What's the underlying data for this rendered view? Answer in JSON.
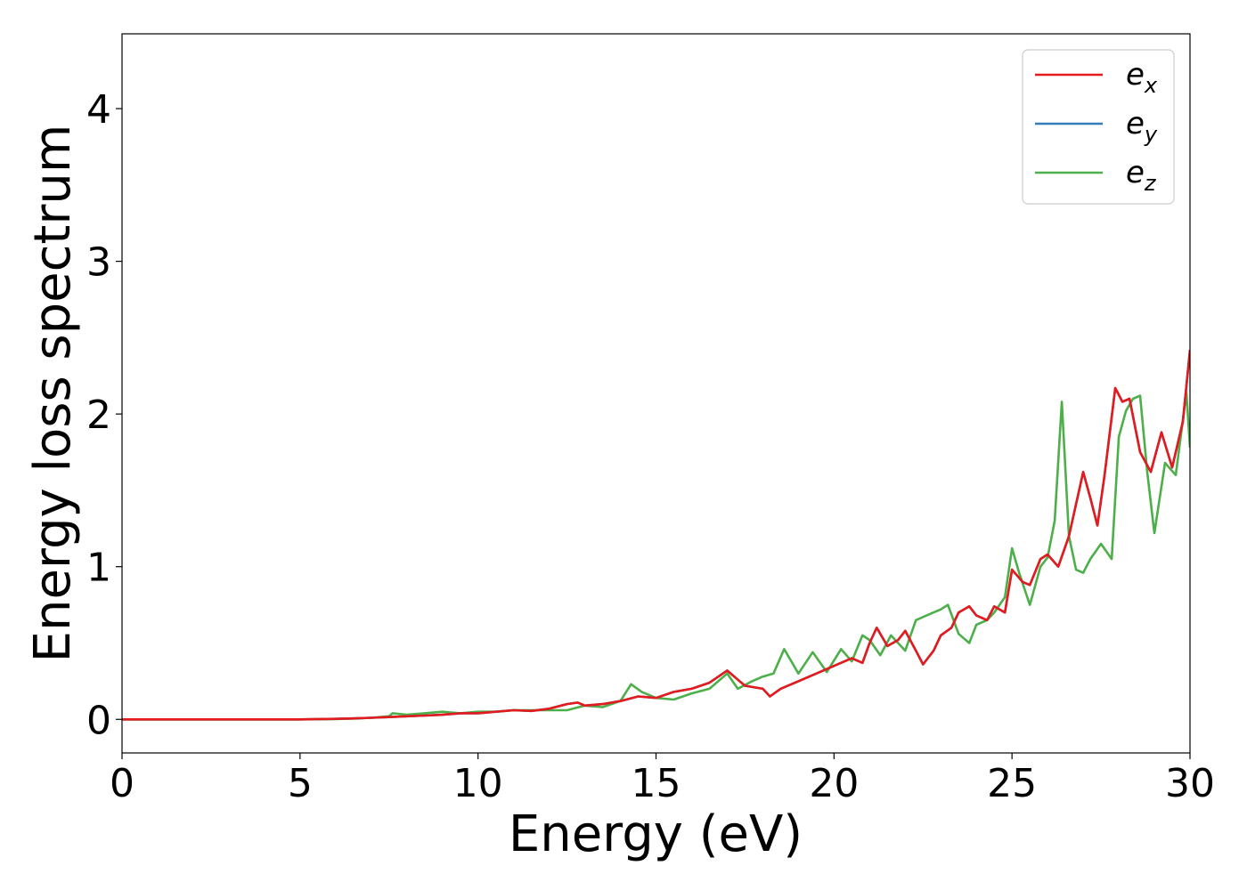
{
  "chart_data": {
    "type": "line",
    "title": "",
    "xlabel": "Energy (eV)",
    "ylabel": "Energy loss spectrum",
    "xlim": [
      0,
      30
    ],
    "ylim": [
      -0.22,
      4.49
    ],
    "xticks": [
      0,
      5,
      10,
      15,
      20,
      25,
      30
    ],
    "xtick_labels": [
      "0",
      "5",
      "10",
      "15",
      "20",
      "25",
      "30"
    ],
    "yticks": [
      0,
      1,
      2,
      3,
      4
    ],
    "ytick_labels": [
      "0",
      "1",
      "2",
      "3",
      "4"
    ],
    "grid": false,
    "legend_position": "top-right",
    "series": [
      {
        "name": "e_x",
        "label_base": "e",
        "label_sub": "x",
        "color": "#e41a1c",
        "x": [
          0,
          5,
          6,
          6.5,
          7,
          7.5,
          8,
          8.5,
          9,
          9.5,
          10,
          10.5,
          11,
          11.5,
          12,
          12.5,
          12.8,
          13,
          13.5,
          14,
          14.5,
          15,
          15.5,
          16,
          16.5,
          17,
          17.3,
          17.5,
          18,
          18.2,
          18.5,
          19,
          19.5,
          20,
          20.5,
          20.8,
          21,
          21.2,
          21.5,
          21.8,
          22,
          22.3,
          22.5,
          22.8,
          23,
          23.3,
          23.5,
          23.8,
          24,
          24.3,
          24.5,
          24.8,
          25,
          25.3,
          25.5,
          25.8,
          26,
          26.3,
          26.6,
          27,
          27.2,
          27.4,
          27.6,
          27.9,
          28.1,
          28.3,
          28.6,
          28.9,
          29.2,
          29.5,
          29.8,
          30
        ],
        "y": [
          0,
          0,
          0.003,
          0.006,
          0.01,
          0.015,
          0.02,
          0.025,
          0.03,
          0.04,
          0.04,
          0.05,
          0.06,
          0.055,
          0.07,
          0.1,
          0.11,
          0.09,
          0.1,
          0.12,
          0.15,
          0.14,
          0.18,
          0.2,
          0.24,
          0.32,
          0.26,
          0.22,
          0.2,
          0.15,
          0.2,
          0.25,
          0.3,
          0.35,
          0.4,
          0.37,
          0.5,
          0.6,
          0.48,
          0.52,
          0.58,
          0.45,
          0.36,
          0.45,
          0.55,
          0.6,
          0.7,
          0.74,
          0.68,
          0.65,
          0.74,
          0.7,
          0.98,
          0.9,
          0.88,
          1.05,
          1.08,
          1.0,
          1.2,
          1.62,
          1.45,
          1.27,
          1.6,
          2.17,
          2.08,
          2.1,
          1.75,
          1.62,
          1.88,
          1.65,
          1.95,
          2.42
        ]
      },
      {
        "name": "e_y",
        "label_base": "e",
        "label_sub": "y",
        "color": "#377eb8",
        "x": [
          0,
          5,
          6,
          6.5,
          7,
          7.5,
          8,
          8.5,
          9,
          9.5,
          10,
          10.5,
          11,
          11.5,
          12,
          12.5,
          12.8,
          13,
          13.5,
          14,
          14.5,
          15,
          15.5,
          16,
          16.5,
          17,
          17.3,
          17.5,
          18,
          18.2,
          18.5,
          19,
          19.5,
          20,
          20.5,
          20.8,
          21,
          21.2,
          21.5,
          21.8,
          22,
          22.3,
          22.5,
          22.8,
          23,
          23.3,
          23.5,
          23.8,
          24,
          24.3,
          24.5,
          24.8,
          25,
          25.3,
          25.5,
          25.8,
          26,
          26.3,
          26.6,
          27,
          27.2,
          27.4,
          27.6,
          27.9,
          28.1,
          28.3,
          28.6,
          28.9,
          29.2,
          29.5,
          29.8,
          30
        ],
        "y": [
          0,
          0,
          0.003,
          0.006,
          0.01,
          0.015,
          0.02,
          0.025,
          0.03,
          0.04,
          0.04,
          0.05,
          0.06,
          0.055,
          0.07,
          0.1,
          0.11,
          0.09,
          0.1,
          0.12,
          0.15,
          0.14,
          0.18,
          0.2,
          0.24,
          0.32,
          0.26,
          0.22,
          0.2,
          0.15,
          0.2,
          0.25,
          0.3,
          0.35,
          0.4,
          0.37,
          0.5,
          0.6,
          0.48,
          0.52,
          0.58,
          0.45,
          0.36,
          0.45,
          0.55,
          0.6,
          0.7,
          0.74,
          0.68,
          0.65,
          0.74,
          0.7,
          0.98,
          0.9,
          0.88,
          1.05,
          1.08,
          1.0,
          1.2,
          1.62,
          1.45,
          1.27,
          1.6,
          2.17,
          2.08,
          2.1,
          1.75,
          1.62,
          1.88,
          1.65,
          1.95,
          2.42
        ]
      },
      {
        "name": "e_z",
        "label_base": "e",
        "label_sub": "z",
        "color": "#4daf4a",
        "x": [
          0,
          5,
          6,
          6.5,
          7,
          7.5,
          7.6,
          8,
          8.5,
          9,
          9.5,
          10,
          10.5,
          11,
          11.5,
          12,
          12.5,
          13,
          13.5,
          14,
          14.3,
          14.6,
          15,
          15.5,
          16,
          16.5,
          17,
          17.3,
          17.7,
          18,
          18.3,
          18.6,
          19,
          19.4,
          19.8,
          20.2,
          20.5,
          20.8,
          21,
          21.3,
          21.6,
          22,
          22.3,
          22.6,
          23,
          23.2,
          23.5,
          23.8,
          24,
          24.3,
          24.5,
          24.8,
          25,
          25.2,
          25.5,
          25.8,
          26,
          26.2,
          26.4,
          26.6,
          26.8,
          27,
          27.2,
          27.5,
          27.8,
          28,
          28.2,
          28.4,
          28.6,
          28.8,
          29,
          29.3,
          29.6,
          29.9,
          30
        ],
        "y": [
          0,
          0,
          0.002,
          0.005,
          0.01,
          0.02,
          0.04,
          0.03,
          0.04,
          0.05,
          0.04,
          0.05,
          0.05,
          0.06,
          0.06,
          0.06,
          0.06,
          0.09,
          0.08,
          0.12,
          0.23,
          0.18,
          0.14,
          0.13,
          0.17,
          0.2,
          0.3,
          0.2,
          0.25,
          0.28,
          0.3,
          0.46,
          0.3,
          0.44,
          0.31,
          0.46,
          0.38,
          0.55,
          0.52,
          0.42,
          0.55,
          0.45,
          0.65,
          0.68,
          0.72,
          0.75,
          0.56,
          0.5,
          0.62,
          0.65,
          0.7,
          0.8,
          1.12,
          0.96,
          0.75,
          1.0,
          1.06,
          1.3,
          2.08,
          1.2,
          0.98,
          0.96,
          1.05,
          1.15,
          1.05,
          1.85,
          2.02,
          2.1,
          2.12,
          1.62,
          1.22,
          1.68,
          1.6,
          2.14,
          1.78
        ]
      }
    ]
  }
}
